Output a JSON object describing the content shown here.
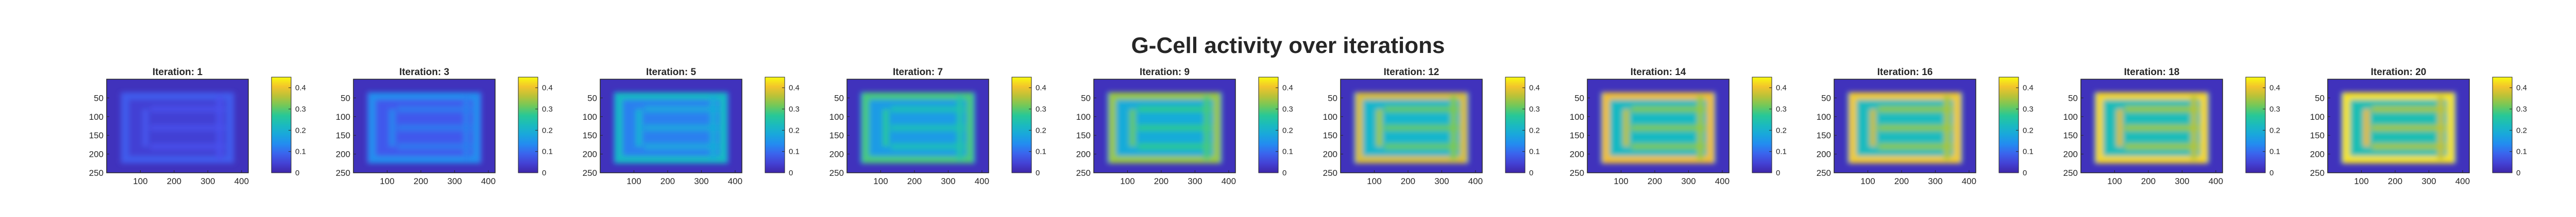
{
  "figure": {
    "title": "G-Cell activity over iterations"
  },
  "chart_data": {
    "type": "heatmap",
    "title": "G-Cell activity over iterations",
    "grid": false,
    "xticks": [
      100,
      200,
      300,
      400
    ],
    "yticks": [
      50,
      100,
      150,
      200,
      250
    ],
    "xlim": [
      0,
      420
    ],
    "ylim": [
      0,
      250
    ],
    "colorbar": {
      "ticks": [
        0,
        0.1,
        0.2,
        0.3,
        0.4
      ],
      "range": [
        0,
        0.45
      ],
      "colormap": "parula",
      "placement": "right"
    },
    "panels": [
      {
        "title": "Iteration: 1",
        "iteration": 1,
        "level": 0.08
      },
      {
        "title": "Iteration: 3",
        "iteration": 3,
        "level": 0.14
      },
      {
        "title": "Iteration: 5",
        "iteration": 5,
        "level": 0.22
      },
      {
        "title": "Iteration: 7",
        "iteration": 7,
        "level": 0.29
      },
      {
        "title": "Iteration: 9",
        "iteration": 9,
        "level": 0.34
      },
      {
        "title": "Iteration: 12",
        "iteration": 12,
        "level": 0.38
      },
      {
        "title": "Iteration: 14",
        "iteration": 14,
        "level": 0.4
      },
      {
        "title": "Iteration: 16",
        "iteration": 16,
        "level": 0.41
      },
      {
        "title": "Iteration: 18",
        "iteration": 18,
        "level": 0.42
      },
      {
        "title": "Iteration: 20",
        "iteration": 20,
        "level": 0.43
      }
    ]
  }
}
